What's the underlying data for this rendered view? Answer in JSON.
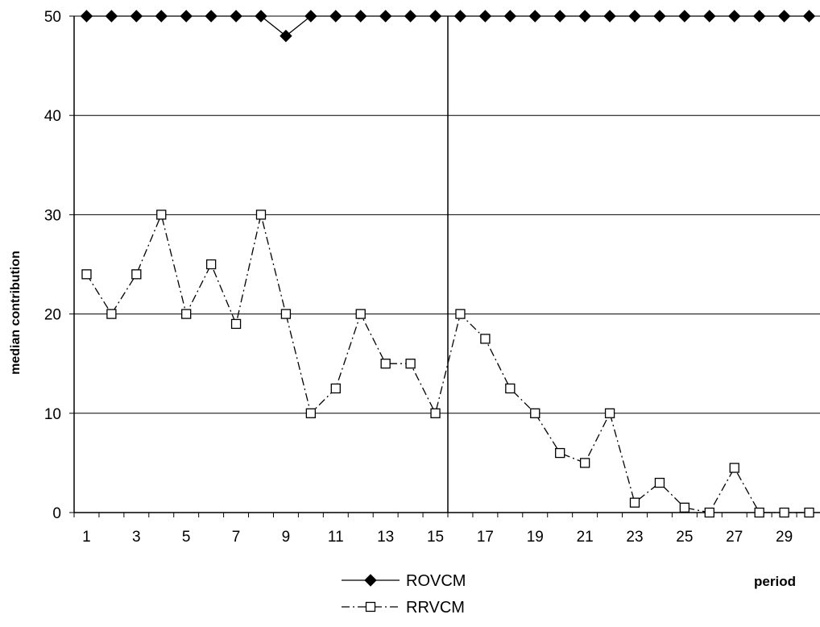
{
  "chart_data": {
    "type": "line",
    "title": "",
    "xlabel": "period",
    "ylabel": "median contribution",
    "ylim": [
      0,
      50
    ],
    "yticks": [
      "0",
      "10",
      "20",
      "30",
      "40",
      "50"
    ],
    "x": [
      1,
      2,
      3,
      4,
      5,
      6,
      7,
      8,
      9,
      10,
      11,
      12,
      13,
      14,
      15,
      16,
      17,
      18,
      19,
      20,
      21,
      22,
      23,
      24,
      25,
      26,
      27,
      28,
      29,
      30
    ],
    "xtick_labels": [
      "1",
      "3",
      "5",
      "7",
      "9",
      "11",
      "13",
      "15",
      "17",
      "19",
      "21",
      "23",
      "25",
      "27",
      "29"
    ],
    "grid": "horizontal",
    "reference_line_x": 15.5,
    "legend_position": "bottom-left",
    "series": [
      {
        "name": "ROVCM",
        "marker": "filled-diamond",
        "line_style": "solid",
        "color": "#000000",
        "values": [
          50,
          50,
          50,
          50,
          50,
          50,
          50,
          50,
          48,
          50,
          50,
          50,
          50,
          50,
          50,
          50,
          50,
          50,
          50,
          50,
          50,
          50,
          50,
          50,
          50,
          50,
          50,
          50,
          50,
          50
        ]
      },
      {
        "name": "RRVCM",
        "marker": "open-square",
        "line_style": "dash-dot",
        "color": "#000000",
        "values": [
          24,
          20,
          24,
          30,
          20,
          25,
          19,
          30,
          20,
          10,
          12.5,
          20,
          15,
          15,
          10,
          20,
          17.5,
          12.5,
          10,
          6,
          5,
          10,
          1,
          3,
          0.5,
          0,
          4.5,
          0,
          0,
          0
        ]
      }
    ]
  }
}
